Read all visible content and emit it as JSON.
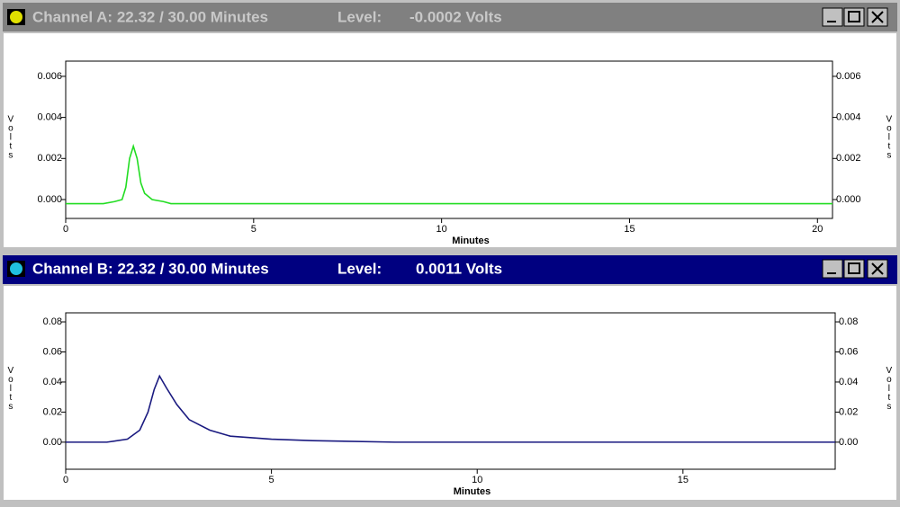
{
  "windows": [
    {
      "title": "Channel A: 22.32 / 30.00 Minutes",
      "level_label": "Level:",
      "level_value": "-0.0002 Volts"
    },
    {
      "title": "Channel B: 22.32 / 30.00 Minutes",
      "level_label": "Level:",
      "level_value": "0.0011 Volts"
    }
  ],
  "chart_data": [
    {
      "type": "line",
      "x_label": "Minutes",
      "y_label": "Volts",
      "xlim": [
        0,
        20.4
      ],
      "ylim": [
        -0.00092,
        0.00674
      ],
      "xticks": [
        0,
        5,
        10,
        15,
        20
      ],
      "yticks": [
        {
          "value": 0,
          "label": "0.000"
        },
        {
          "value": 0.002,
          "label": "0.002"
        },
        {
          "value": 0.004,
          "label": "0.004"
        },
        {
          "value": 0.006,
          "label": "0.006"
        }
      ],
      "series": [
        {
          "color": "#22dd22",
          "x": [
            0,
            1.0,
            1.3,
            1.5,
            1.6,
            1.7,
            1.8,
            1.9,
            2.0,
            2.1,
            2.3,
            2.6,
            2.8,
            20.4
          ],
          "values": [
            -0.0002,
            -0.0002,
            -0.0001,
            0.0,
            0.0006,
            0.002,
            0.0026,
            0.002,
            0.0008,
            0.0003,
            0.0,
            -0.0001,
            -0.0002,
            -0.0002
          ]
        }
      ]
    },
    {
      "type": "line",
      "x_label": "Minutes",
      "y_label": "Volts",
      "xlim": [
        0,
        18.7
      ],
      "ylim": [
        -0.018,
        0.086
      ],
      "xticks": [
        0,
        5,
        10,
        15
      ],
      "yticks": [
        {
          "value": 0,
          "label": "0.00"
        },
        {
          "value": 0.02,
          "label": "0.02"
        },
        {
          "value": 0.04,
          "label": "0.04"
        },
        {
          "value": 0.06,
          "label": "0.06"
        },
        {
          "value": 0.08,
          "label": "0.08"
        }
      ],
      "series": [
        {
          "color": "#1a1a80",
          "x": [
            0,
            1.0,
            1.5,
            1.8,
            2.0,
            2.15,
            2.28,
            2.45,
            2.7,
            3.0,
            3.5,
            4.0,
            5.0,
            6.0,
            8.0,
            18.7
          ],
          "values": [
            0,
            0,
            0.002,
            0.008,
            0.02,
            0.035,
            0.044,
            0.036,
            0.025,
            0.015,
            0.008,
            0.004,
            0.002,
            0.001,
            0,
            0
          ]
        }
      ]
    }
  ]
}
